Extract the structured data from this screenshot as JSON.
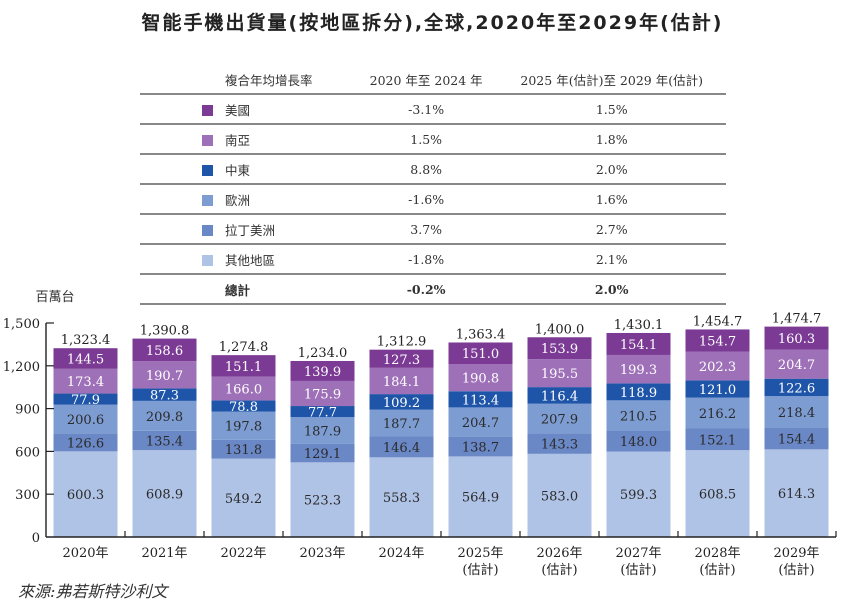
{
  "title": "智能手機出貨量(按地區拆分),全球,2020年至2029年(估計)",
  "cagr_table": {
    "header": [
      "複合年均增長率",
      "2020 年至 2024 年",
      "2025 年(估計)至 2029 年(估計)"
    ],
    "rows": [
      {
        "region": "美國",
        "color": "#7B3A94",
        "cagr_2020_2024": "-3.1%",
        "cagr_2025_2029": "1.5%"
      },
      {
        "region": "南亞",
        "color": "#9E70B8",
        "cagr_2020_2024": "1.5%",
        "cagr_2025_2029": "1.8%"
      },
      {
        "region": "中東",
        "color": "#1F55A8",
        "cagr_2020_2024": "8.8%",
        "cagr_2025_2029": "2.0%"
      },
      {
        "region": "歐洲",
        "color": "#7C9CD2",
        "cagr_2020_2024": "-1.6%",
        "cagr_2025_2029": "1.6%"
      },
      {
        "region": "拉丁美洲",
        "color": "#6A87C6",
        "cagr_2020_2024": "3.7%",
        "cagr_2025_2029": "2.7%"
      },
      {
        "region": "其他地區",
        "color": "#AFC3E6",
        "cagr_2020_2024": "-1.8%",
        "cagr_2025_2029": "2.1%"
      }
    ],
    "total": {
      "label": "總計",
      "cagr_2020_2024": "-0.2%",
      "cagr_2025_2029": "2.0%"
    }
  },
  "chart_data": {
    "type": "bar",
    "stacked": true,
    "title": "智能手機出貨量(按地區拆分),全球,2020年至2029年(估計)",
    "ylabel": "百萬台",
    "xlabel": "",
    "ylim": [
      0,
      1500
    ],
    "yticks": [
      "0",
      "300",
      "600",
      "900",
      "1,200",
      "1,500"
    ],
    "ytick_values": [
      0,
      300,
      600,
      900,
      1200,
      1500
    ],
    "grid": false,
    "legend": "table-above",
    "categories": [
      [
        "2020年"
      ],
      [
        "2021年"
      ],
      [
        "2022年"
      ],
      [
        "2023年"
      ],
      [
        "2024年"
      ],
      [
        "2025年",
        "(估計)"
      ],
      [
        "2026年",
        "(估計)"
      ],
      [
        "2027年",
        "(估計)"
      ],
      [
        "2028年",
        "(估計)"
      ],
      [
        "2029年",
        "(估計)"
      ]
    ],
    "series": [
      {
        "name": "其他地區",
        "color": "#AFC3E6",
        "text_color": "#2b2b2b",
        "values": [
          600.3,
          608.9,
          549.2,
          523.3,
          558.3,
          564.9,
          583.0,
          599.3,
          608.5,
          614.3
        ]
      },
      {
        "name": "拉丁美洲",
        "color": "#6A87C6",
        "text_color": "#2b2b2b",
        "values": [
          126.6,
          135.4,
          131.8,
          129.1,
          146.4,
          138.7,
          143.3,
          148.0,
          152.1,
          154.4
        ]
      },
      {
        "name": "歐洲",
        "color": "#7C9CD2",
        "text_color": "#2b2b2b",
        "values": [
          200.6,
          209.8,
          197.8,
          187.9,
          187.7,
          204.7,
          207.9,
          210.5,
          216.2,
          218.4
        ]
      },
      {
        "name": "中東",
        "color": "#1F55A8",
        "text_color": "#ffffff",
        "values": [
          77.9,
          87.3,
          78.8,
          77.7,
          109.2,
          113.4,
          116.4,
          118.9,
          121.0,
          122.6
        ]
      },
      {
        "name": "南亞",
        "color": "#9E70B8",
        "text_color": "#ffffff",
        "values": [
          173.4,
          190.7,
          166.0,
          175.9,
          184.1,
          190.8,
          195.5,
          199.3,
          202.3,
          204.7
        ]
      },
      {
        "name": "美國",
        "color": "#7B3A94",
        "text_color": "#ffffff",
        "values": [
          144.5,
          158.6,
          151.1,
          139.9,
          127.3,
          151.0,
          153.9,
          154.1,
          154.7,
          160.3
        ]
      }
    ],
    "labels": [
      [
        "600.3",
        "126.6",
        "200.6",
        "77.9",
        "173.4",
        "144.5"
      ],
      [
        "608.9",
        "135.4",
        "209.8",
        "87.3",
        "190.7",
        "158.6"
      ],
      [
        "549.2",
        "131.8",
        "197.8",
        "78.8",
        "166.0",
        "151.1"
      ],
      [
        "523.3",
        "129.1",
        "187.9",
        "77.7",
        "175.9",
        "139.9"
      ],
      [
        "558.3",
        "146.4",
        "187.7",
        "109.2",
        "184.1",
        "127.3"
      ],
      [
        "564.9",
        "138.7",
        "204.7",
        "113.4",
        "190.8",
        "151.0"
      ],
      [
        "583.0",
        "143.3",
        "207.9",
        "116.4",
        "195.5",
        "153.9"
      ],
      [
        "599.3",
        "148.0",
        "210.5",
        "118.9",
        "199.3",
        "154.1"
      ],
      [
        "608.5",
        "152.1",
        "216.2",
        "121.0",
        "202.3",
        "154.7"
      ],
      [
        "614.3",
        "154.4",
        "218.4",
        "122.6",
        "204.7",
        "160.3"
      ]
    ],
    "totals": [
      1323.4,
      1390.8,
      1274.8,
      1234.0,
      1312.9,
      1363.4,
      1400.0,
      1430.1,
      1454.7,
      1474.7
    ],
    "total_labels": [
      "1,323.4",
      "1,390.8",
      "1,274.8",
      "1,234.0",
      "1,312.9",
      "1,363.4",
      "1,400.0",
      "1,430.1",
      "1,454.7",
      "1,474.7"
    ]
  },
  "source": "來源:弗若斯特沙利文"
}
